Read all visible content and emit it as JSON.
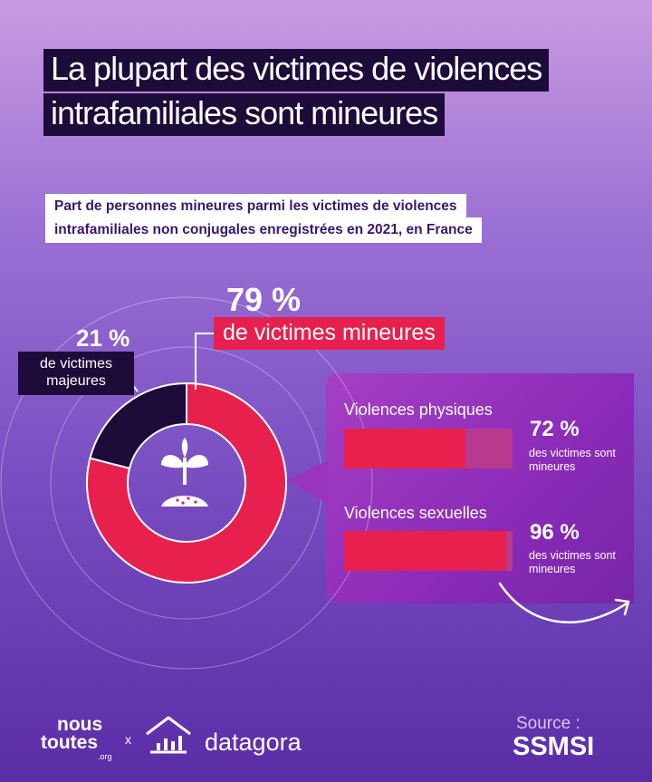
{
  "header": {
    "title_line1": "La plupart des victimes de violences",
    "title_line2": "intrafamiliales sont mineures",
    "subtitle_line1": "Part de personnes mineures parmi les victimes de violences",
    "subtitle_line2": "intrafamiliales non conjugales enregistrées en 2021, en France"
  },
  "chart_data": [
    {
      "type": "pie",
      "subtype": "donut",
      "slices": [
        {
          "label": "de victimes mineures",
          "pct_label": "79 %",
          "value": 79,
          "color": "#e8204e"
        },
        {
          "label": "de victimes majeures",
          "pct_label": "21 %",
          "value": 21,
          "color": "#1d0b3a"
        }
      ],
      "center_icon": "seedling-icon"
    },
    {
      "type": "bar",
      "orientation": "horizontal",
      "categories": [
        "Violences physiques",
        "Violences sexuelles"
      ],
      "values": [
        72,
        96
      ],
      "value_labels": [
        "72 %",
        "96 %"
      ],
      "note": "des victimes sont mineures",
      "xlim": [
        0,
        100
      ],
      "colors": {
        "fill": "#e8204e",
        "track": "#b83a8e"
      }
    }
  ],
  "labels": {
    "minor_pct": "79 %",
    "minor_text": "de victimes mineures",
    "major_pct": "21 %",
    "major_text": "de victimes majeures",
    "cat1": "Violences physiques",
    "cat2": "Violences sexuelles",
    "bar1_pct": "72 %",
    "bar2_pct": "96 %",
    "note": "des victimes sont mineures"
  },
  "footer": {
    "logo1_line1": "nous",
    "logo1_line2": "toutes",
    "logo1_suffix": ".org",
    "separator": "x",
    "logo2": "datagora",
    "source_label": "Source :",
    "source_name": "SSMSI"
  },
  "colors": {
    "accent": "#e8204e",
    "dark": "#1d0b3a",
    "panel": "#8a2bb8"
  }
}
